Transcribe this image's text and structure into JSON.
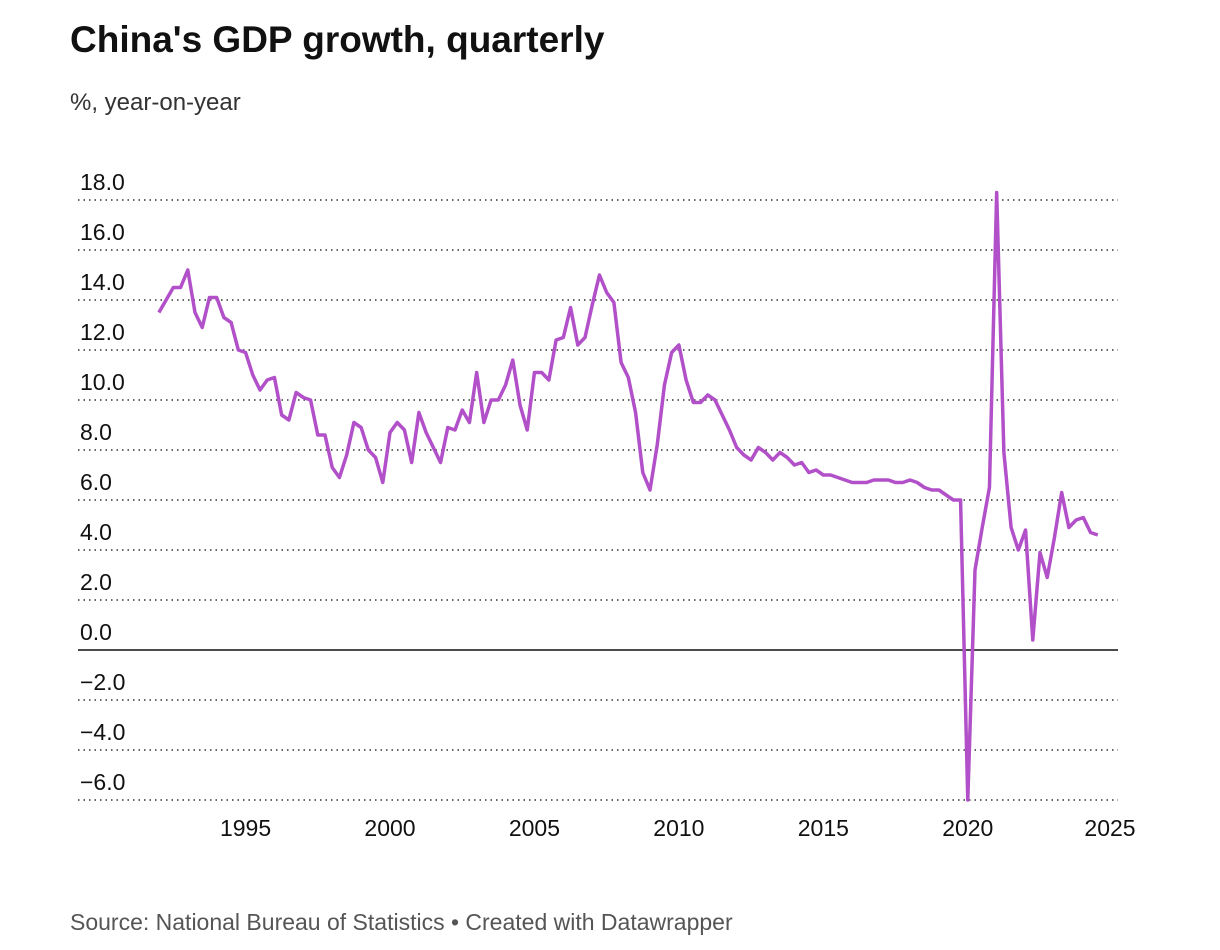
{
  "chart_data": {
    "type": "line",
    "title": "China's GDP growth, quarterly",
    "subtitle": "%, year-on-year",
    "source": "Source: National Bureau of Statistics • Created with Datawrapper",
    "x": [
      1992,
      1992.25,
      1992.5,
      1992.75,
      1993,
      1993.25,
      1993.5,
      1993.75,
      1994,
      1994.25,
      1994.5,
      1994.75,
      1995,
      1995.25,
      1995.5,
      1995.75,
      1996,
      1996.25,
      1996.5,
      1996.75,
      1997,
      1997.25,
      1997.5,
      1997.75,
      1998,
      1998.25,
      1998.5,
      1998.75,
      1999,
      1999.25,
      1999.5,
      1999.75,
      2000,
      2000.25,
      2000.5,
      2000.75,
      2001,
      2001.25,
      2001.5,
      2001.75,
      2002,
      2002.25,
      2002.5,
      2002.75,
      2003,
      2003.25,
      2003.5,
      2003.75,
      2004,
      2004.25,
      2004.5,
      2004.75,
      2005,
      2005.25,
      2005.5,
      2005.75,
      2006,
      2006.25,
      2006.5,
      2006.75,
      2007,
      2007.25,
      2007.5,
      2007.75,
      2008,
      2008.25,
      2008.5,
      2008.75,
      2009,
      2009.25,
      2009.5,
      2009.75,
      2010,
      2010.25,
      2010.5,
      2010.75,
      2011,
      2011.25,
      2011.5,
      2011.75,
      2012,
      2012.25,
      2012.5,
      2012.75,
      2013,
      2013.25,
      2013.5,
      2013.75,
      2014,
      2014.25,
      2014.5,
      2014.75,
      2015,
      2015.25,
      2015.5,
      2015.75,
      2016,
      2016.25,
      2016.5,
      2016.75,
      2017,
      2017.25,
      2017.5,
      2017.75,
      2018,
      2018.25,
      2018.5,
      2018.75,
      2019,
      2019.25,
      2019.5,
      2019.75,
      2020,
      2020.25,
      2020.5,
      2020.75,
      2021,
      2021.25,
      2021.5,
      2021.75,
      2022,
      2022.25,
      2022.5,
      2022.75,
      2023,
      2023.25,
      2023.5,
      2023.75,
      2024,
      2024.25,
      2024.5
    ],
    "series": [
      {
        "name": "GDP growth",
        "color": "#b150c8",
        "values": [
          13.5,
          14.0,
          14.5,
          14.5,
          15.2,
          13.5,
          12.9,
          14.1,
          14.1,
          13.3,
          13.1,
          12.0,
          11.9,
          11.0,
          10.4,
          10.8,
          10.9,
          9.4,
          9.2,
          10.3,
          10.1,
          10.0,
          8.6,
          8.6,
          7.3,
          6.9,
          7.8,
          9.1,
          8.9,
          8.0,
          7.7,
          6.7,
          8.7,
          9.1,
          8.8,
          7.5,
          9.5,
          8.7,
          8.1,
          7.5,
          8.9,
          8.8,
          9.6,
          9.1,
          11.1,
          9.1,
          10.0,
          10.0,
          10.6,
          11.6,
          9.8,
          8.8,
          11.1,
          11.1,
          10.8,
          12.4,
          12.5,
          13.7,
          12.2,
          12.5,
          13.8,
          15.0,
          14.3,
          13.9,
          11.5,
          10.9,
          9.5,
          7.1,
          6.4,
          8.2,
          10.6,
          11.9,
          12.2,
          10.8,
          9.9,
          9.9,
          10.2,
          10.0,
          9.4,
          8.8,
          8.1,
          7.8,
          7.6,
          8.1,
          7.9,
          7.6,
          7.9,
          7.7,
          7.4,
          7.5,
          7.1,
          7.2,
          7.0,
          7.0,
          6.9,
          6.8,
          6.7,
          6.7,
          6.7,
          6.8,
          6.8,
          6.8,
          6.7,
          6.7,
          6.8,
          6.7,
          6.5,
          6.4,
          6.4,
          6.2,
          6.0,
          6.0,
          -6.0,
          3.2,
          4.9,
          6.5,
          18.3,
          7.9,
          4.9,
          4.0,
          4.8,
          0.4,
          3.9,
          2.9,
          4.5,
          6.3,
          4.9,
          5.2,
          5.3,
          4.7,
          4.6
        ]
      }
    ],
    "xlim": [
      1989.2,
      2025.2
    ],
    "xticks": [
      1995,
      2000,
      2005,
      2010,
      2015,
      2020,
      2025
    ],
    "ylim": [
      -6,
      18
    ],
    "yticks": [
      {
        "value": 18,
        "label": "18.0"
      },
      {
        "value": 16,
        "label": "16.0"
      },
      {
        "value": 14,
        "label": "14.0"
      },
      {
        "value": 12,
        "label": "12.0"
      },
      {
        "value": 10,
        "label": "10.0"
      },
      {
        "value": 8,
        "label": "8.0"
      },
      {
        "value": 6,
        "label": "6.0"
      },
      {
        "value": 4,
        "label": "4.0"
      },
      {
        "value": 2,
        "label": "2.0"
      },
      {
        "value": 0,
        "label": "0.0"
      },
      {
        "value": -2,
        "label": "−2.0"
      },
      {
        "value": -4,
        "label": "−4.0"
      },
      {
        "value": -6,
        "label": "−6.0"
      }
    ],
    "grid": true
  }
}
